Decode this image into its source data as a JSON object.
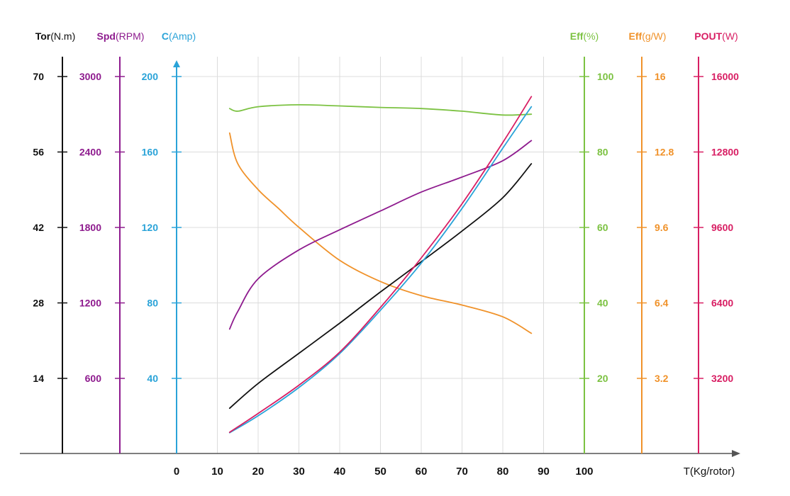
{
  "chart_data": {
    "type": "line",
    "xlabel": "T(Kg/rotor)",
    "x_ticks": [
      0,
      10,
      20,
      30,
      40,
      50,
      60,
      70,
      80,
      90,
      100
    ],
    "xlim": [
      0,
      100
    ],
    "grid": true,
    "axes": [
      {
        "key": "tor",
        "name": "Tor",
        "unit": "(N.m)",
        "color": "#111111",
        "ticks": [
          "70",
          "56",
          "42",
          "28",
          "14"
        ],
        "range": [
          0,
          70
        ]
      },
      {
        "key": "spd",
        "name": "Spd",
        "unit": "(RPM)",
        "color": "#8e1b8e",
        "ticks": [
          "3000",
          "2400",
          "1800",
          "1200",
          "600"
        ],
        "range": [
          0,
          3000
        ]
      },
      {
        "key": "c",
        "name": "C",
        "unit": "(Amp)",
        "color": "#2aa3d8",
        "ticks": [
          "200",
          "160",
          "120",
          "80",
          "40"
        ],
        "range": [
          0,
          200
        ]
      },
      {
        "key": "eff",
        "name": "Eff",
        "unit": "(%)",
        "color": "#7cc242",
        "ticks": [
          "100",
          "80",
          "60",
          "40",
          "20"
        ],
        "range": [
          0,
          100
        ]
      },
      {
        "key": "effg",
        "name": "Eff",
        "unit": "(g/W)",
        "color": "#f0922a",
        "ticks": [
          "16",
          "12.8",
          "9.6",
          "6.4",
          "3.2"
        ],
        "range": [
          0,
          16
        ]
      },
      {
        "key": "pout",
        "name": "POUT",
        "unit": "(W)",
        "color": "#d81e63",
        "ticks": [
          "16000",
          "12800",
          "9600",
          "6400",
          "3200"
        ],
        "range": [
          0,
          16000
        ]
      }
    ],
    "series": [
      {
        "axis": "eff",
        "color": "#7cc242",
        "x": [
          13,
          15,
          20,
          30,
          40,
          50,
          60,
          70,
          80,
          87
        ],
        "y": [
          91.5,
          90.8,
          92,
          92.5,
          92.2,
          91.8,
          91.5,
          90.8,
          89.8,
          90
        ]
      },
      {
        "axis": "effg",
        "color": "#f0922a",
        "x": [
          13,
          15,
          20,
          25,
          30,
          40,
          50,
          60,
          70,
          80,
          87
        ],
        "y": [
          13.6,
          12.3,
          11.2,
          10.4,
          9.6,
          8.2,
          7.3,
          6.7,
          6.3,
          5.8,
          5.1
        ]
      },
      {
        "axis": "spd",
        "color": "#8e1b8e",
        "x": [
          13,
          15,
          20,
          30,
          40,
          50,
          60,
          70,
          80,
          87
        ],
        "y": [
          990,
          1130,
          1390,
          1620,
          1780,
          1930,
          2080,
          2200,
          2330,
          2490
        ]
      },
      {
        "axis": "tor",
        "color": "#111111",
        "x": [
          13,
          20,
          30,
          40,
          50,
          60,
          70,
          80,
          87
        ],
        "y": [
          8.4,
          13,
          18.6,
          24.2,
          30,
          35.6,
          41.3,
          47.5,
          53.8
        ]
      },
      {
        "axis": "c",
        "color": "#2aa3d8",
        "x": [
          13,
          20,
          30,
          40,
          50,
          60,
          70,
          80,
          87
        ],
        "y": [
          11,
          20,
          35,
          53,
          76,
          101,
          130,
          162,
          184
        ]
      },
      {
        "axis": "pout",
        "color": "#d81e63",
        "x": [
          13,
          20,
          30,
          40,
          50,
          60,
          70,
          80,
          87
        ],
        "y": [
          900,
          1700,
          2900,
          4300,
          6200,
          8300,
          10600,
          13200,
          15150
        ]
      }
    ]
  }
}
